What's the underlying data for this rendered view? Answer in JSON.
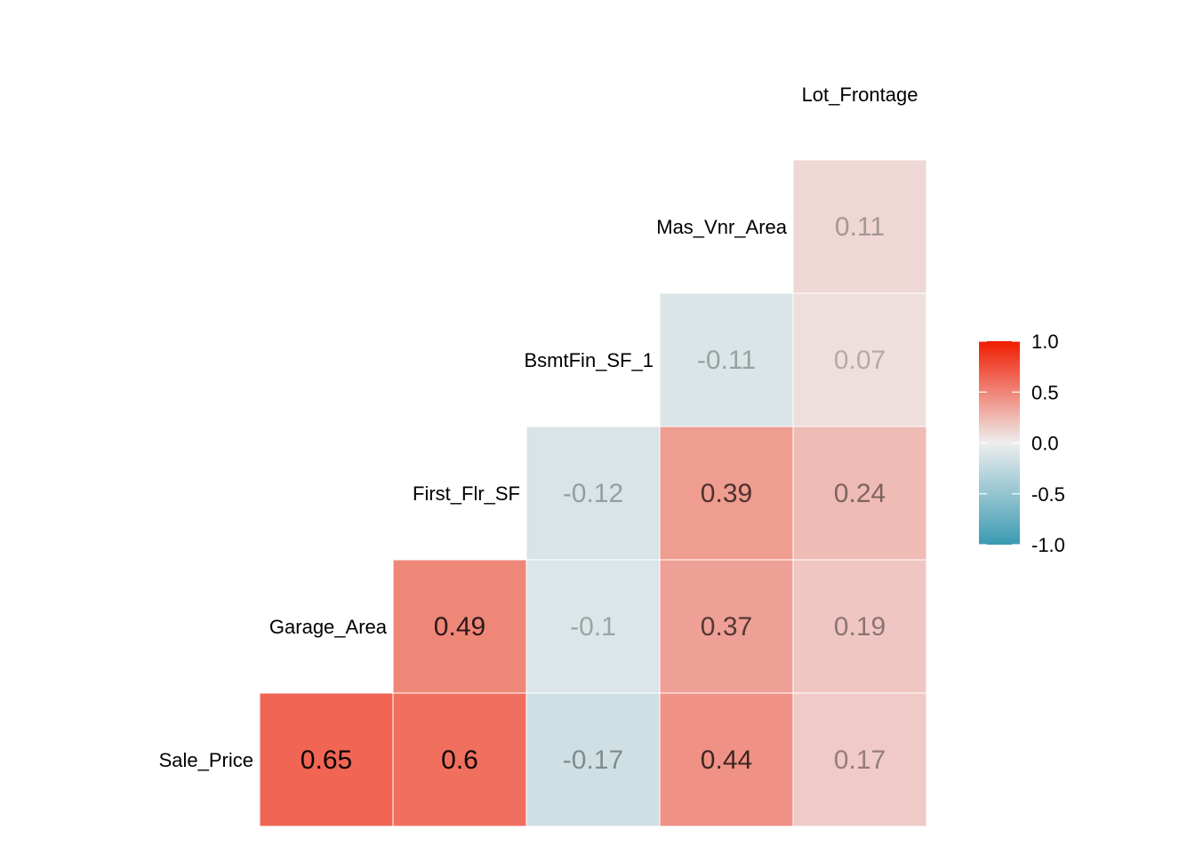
{
  "chart_data": {
    "type": "heatmap",
    "title": "",
    "variables": [
      "Lot_Frontage",
      "Mas_Vnr_Area",
      "BsmtFin_SF_1",
      "First_Flr_SF",
      "Garage_Area",
      "Sale_Price"
    ],
    "cells": [
      {
        "row": "Mas_Vnr_Area",
        "col": "Lot_Frontage",
        "value": 0.11,
        "label": "0.11"
      },
      {
        "row": "BsmtFin_SF_1",
        "col": "Mas_Vnr_Area",
        "value": -0.11,
        "label": "-0.11"
      },
      {
        "row": "BsmtFin_SF_1",
        "col": "Lot_Frontage",
        "value": 0.07,
        "label": "0.07"
      },
      {
        "row": "First_Flr_SF",
        "col": "BsmtFin_SF_1",
        "value": -0.12,
        "label": "-0.12"
      },
      {
        "row": "First_Flr_SF",
        "col": "Mas_Vnr_Area",
        "value": 0.39,
        "label": "0.39"
      },
      {
        "row": "First_Flr_SF",
        "col": "Lot_Frontage",
        "value": 0.24,
        "label": "0.24"
      },
      {
        "row": "Garage_Area",
        "col": "First_Flr_SF",
        "value": 0.49,
        "label": "0.49"
      },
      {
        "row": "Garage_Area",
        "col": "BsmtFin_SF_1",
        "value": -0.1,
        "label": "-0.1"
      },
      {
        "row": "Garage_Area",
        "col": "Mas_Vnr_Area",
        "value": 0.37,
        "label": "0.37"
      },
      {
        "row": "Garage_Area",
        "col": "Lot_Frontage",
        "value": 0.19,
        "label": "0.19"
      },
      {
        "row": "Sale_Price",
        "col": "Garage_Area",
        "value": 0.65,
        "label": "0.65"
      },
      {
        "row": "Sale_Price",
        "col": "First_Flr_SF",
        "value": 0.6,
        "label": "0.6"
      },
      {
        "row": "Sale_Price",
        "col": "BsmtFin_SF_1",
        "value": -0.17,
        "label": "-0.17"
      },
      {
        "row": "Sale_Price",
        "col": "Mas_Vnr_Area",
        "value": 0.44,
        "label": "0.44"
      },
      {
        "row": "Sale_Price",
        "col": "Lot_Frontage",
        "value": 0.17,
        "label": "0.17"
      }
    ],
    "color_scale": {
      "low": "#3A9AB2",
      "mid": "#EEEEEE",
      "high": "#F11B00",
      "limits": [
        -1,
        1
      ]
    },
    "legend": {
      "ticks": [
        1.0,
        0.5,
        0.0,
        -0.5,
        -1.0
      ],
      "tick_labels": [
        "1.0",
        "0.5",
        "0.0",
        "-0.5",
        "-1.0"
      ],
      "position": "right"
    }
  }
}
